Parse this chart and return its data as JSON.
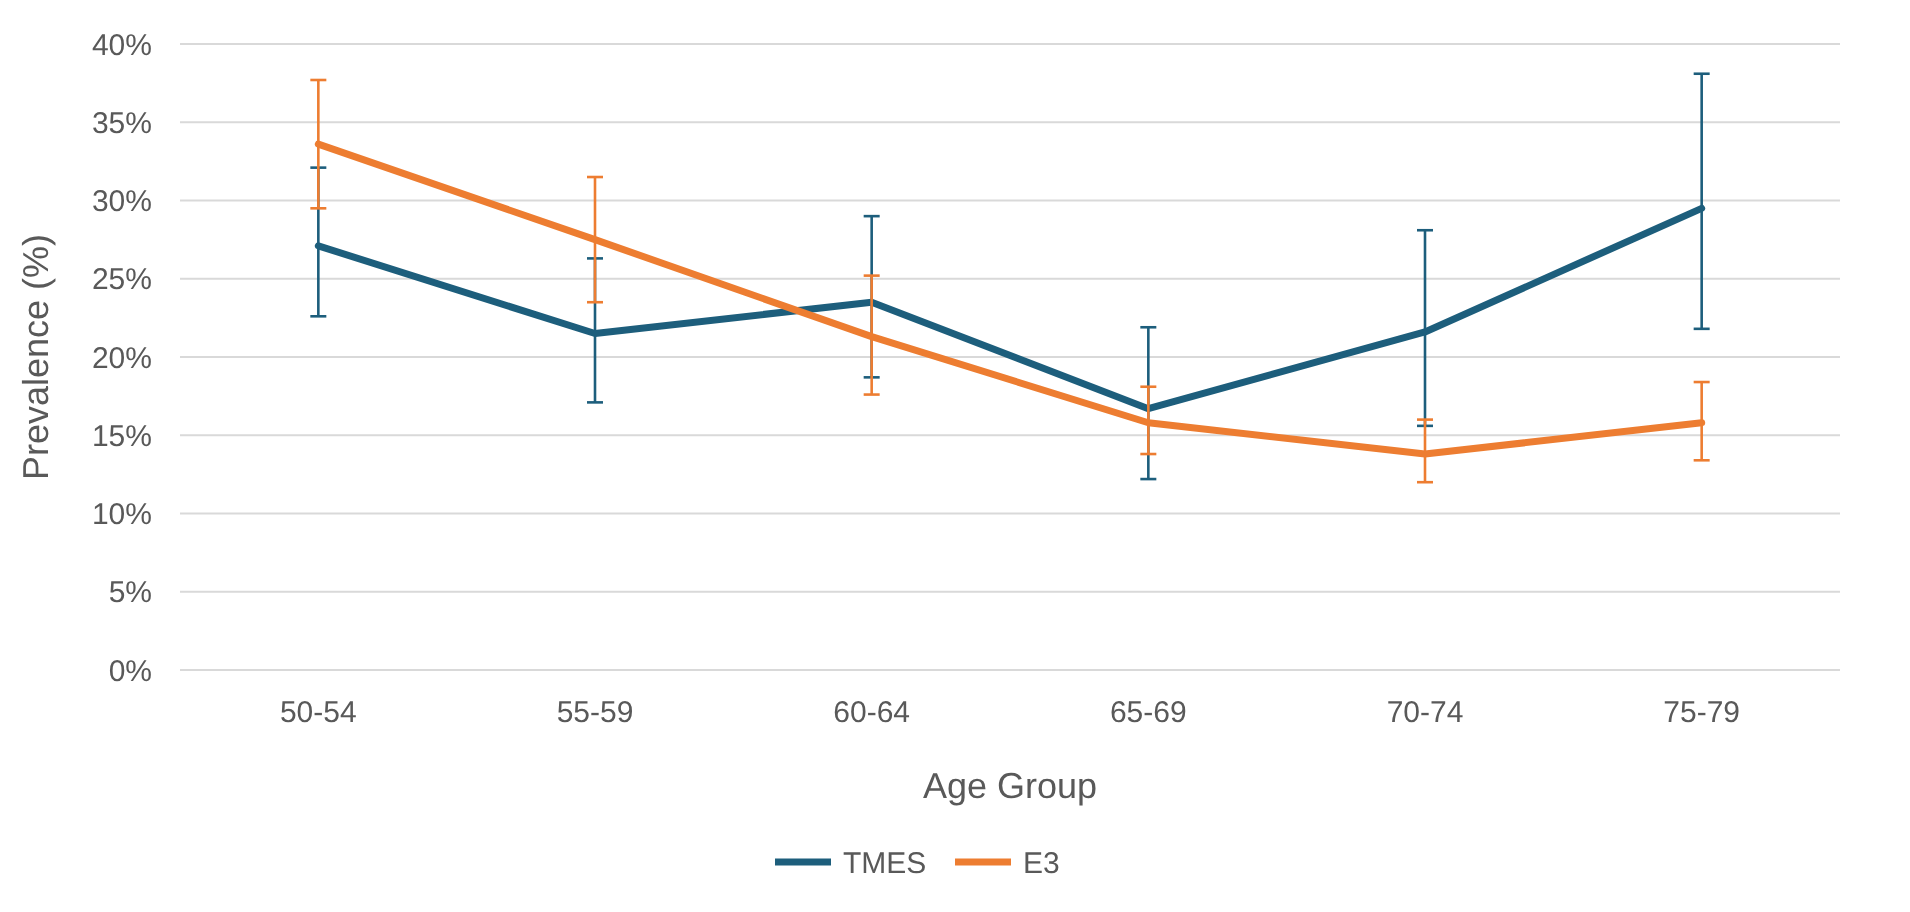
{
  "chart_data": {
    "type": "line",
    "xlabel": "Age Group",
    "ylabel": "Prevalence (%)",
    "categories": [
      "50-54",
      "55-59",
      "60-64",
      "65-69",
      "70-74",
      "75-79"
    ],
    "series": [
      {
        "name": "TMES",
        "color": "#1d5e7c",
        "values": [
          27.1,
          21.5,
          23.5,
          16.7,
          21.6,
          29.5
        ],
        "errors": [
          [
            22.6,
            32.1
          ],
          [
            17.1,
            26.3
          ],
          [
            18.7,
            29.0
          ],
          [
            12.2,
            21.9
          ],
          [
            15.6,
            28.1
          ],
          [
            21.8,
            38.1
          ]
        ]
      },
      {
        "name": "E3",
        "color": "#ed7d31",
        "values": [
          33.6,
          27.5,
          21.3,
          15.8,
          13.8,
          15.8
        ],
        "errors": [
          [
            29.5,
            37.7
          ],
          [
            23.5,
            31.5
          ],
          [
            17.6,
            25.2
          ],
          [
            13.8,
            18.1
          ],
          [
            12.0,
            16.0
          ],
          [
            13.4,
            18.4
          ]
        ]
      }
    ],
    "ylim": [
      0,
      40
    ],
    "yticks": [
      {
        "value": 0,
        "label": "0%"
      },
      {
        "value": 5,
        "label": "5%"
      },
      {
        "value": 10,
        "label": "10%"
      },
      {
        "value": 15,
        "label": "15%"
      },
      {
        "value": 20,
        "label": "20%"
      },
      {
        "value": 25,
        "label": "25%"
      },
      {
        "value": 30,
        "label": "30%"
      },
      {
        "value": 35,
        "label": "35%"
      },
      {
        "value": 40,
        "label": "40%"
      }
    ],
    "grid": "y",
    "legend": "bottom",
    "marker": "none",
    "line_style": "solid"
  }
}
